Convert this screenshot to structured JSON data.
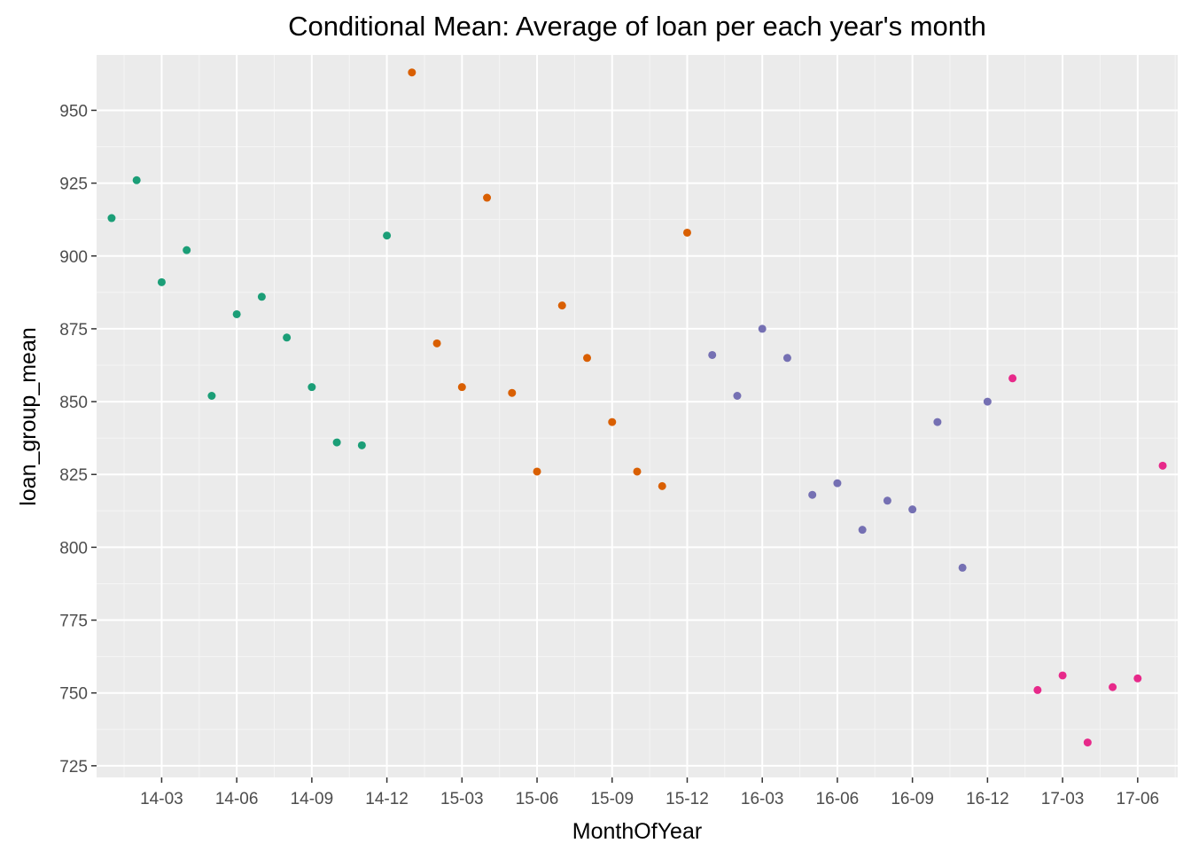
{
  "chart_data": {
    "type": "scatter",
    "title": "Conditional Mean: Average of loan per each year's month",
    "xlabel": "MonthOfYear",
    "ylabel": "loan_group_mean",
    "ylim": [
      721,
      969
    ],
    "y_ticks": [
      725,
      750,
      775,
      800,
      825,
      850,
      875,
      900,
      925,
      950
    ],
    "x_categories": [
      "14-01",
      "14-02",
      "14-03",
      "14-04",
      "14-05",
      "14-06",
      "14-07",
      "14-08",
      "14-09",
      "14-10",
      "14-11",
      "14-12",
      "15-01",
      "15-02",
      "15-03",
      "15-04",
      "15-05",
      "15-06",
      "15-07",
      "15-08",
      "15-09",
      "15-10",
      "15-11",
      "15-12",
      "16-01",
      "16-02",
      "16-03",
      "16-04",
      "16-05",
      "16-06",
      "16-07",
      "16-08",
      "16-09",
      "16-10",
      "16-11",
      "16-12",
      "17-01",
      "17-02",
      "17-03",
      "17-04",
      "17-05",
      "17-06",
      "17-07"
    ],
    "x_tick_labels": [
      "14-03",
      "14-06",
      "14-09",
      "14-12",
      "15-03",
      "15-06",
      "15-09",
      "15-12",
      "16-03",
      "16-06",
      "16-09",
      "16-12",
      "17-03",
      "17-06"
    ],
    "grid": true,
    "legend": "none",
    "background": "#EBEBEB",
    "series": [
      {
        "color": "#1B9E77",
        "x": [
          "14-01",
          "14-02",
          "14-03",
          "14-04",
          "14-05",
          "14-06",
          "14-07",
          "14-08",
          "14-09",
          "14-10",
          "14-11",
          "14-12"
        ],
        "values": [
          913,
          926,
          891,
          902,
          852,
          880,
          886,
          872,
          855,
          836,
          835,
          907
        ]
      },
      {
        "color": "#D95F02",
        "x": [
          "15-01",
          "15-02",
          "15-03",
          "15-04",
          "15-05",
          "15-06",
          "15-07",
          "15-08",
          "15-09",
          "15-10",
          "15-11",
          "15-12"
        ],
        "values": [
          963,
          870,
          855,
          920,
          853,
          826,
          883,
          865,
          843,
          826,
          821,
          908
        ]
      },
      {
        "color": "#7570B3",
        "x": [
          "16-01",
          "16-02",
          "16-03",
          "16-04",
          "16-05",
          "16-06",
          "16-07",
          "16-08",
          "16-09",
          "16-10",
          "16-11",
          "16-12"
        ],
        "values": [
          866,
          852,
          875,
          865,
          818,
          822,
          806,
          816,
          813,
          843,
          793,
          850
        ]
      },
      {
        "color": "#E7298A",
        "x": [
          "17-01",
          "17-02",
          "17-03",
          "17-04",
          "17-05",
          "17-06",
          "17-07"
        ],
        "values": [
          858,
          751,
          756,
          733,
          752,
          755,
          828
        ]
      }
    ]
  }
}
